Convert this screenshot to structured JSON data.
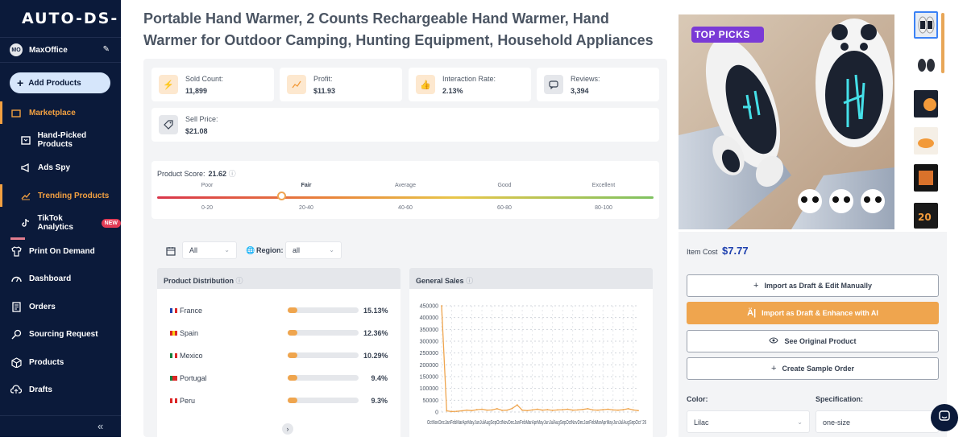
{
  "app": {
    "logo": "AUTO-DS-"
  },
  "user": {
    "initials": "MO",
    "name": "MaxOffice"
  },
  "sidebar": {
    "add_label": "Add Products",
    "items": [
      {
        "label": "Marketplace"
      },
      {
        "label": "Hand-Picked Products"
      },
      {
        "label": "Ads Spy"
      },
      {
        "label": "Trending Products"
      },
      {
        "label": "TikTok Analytics",
        "badge": "NEW"
      },
      {
        "label": "Print On Demand"
      },
      {
        "label": "Dashboard"
      },
      {
        "label": "Orders"
      },
      {
        "label": "Sourcing Request"
      },
      {
        "label": "Products"
      },
      {
        "label": "Drafts"
      }
    ],
    "collapse": "«"
  },
  "product": {
    "title": "Portable Hand Warmer, 2 Counts Rechargeable Hand Warmer, Hand Warmer for Outdoor Camping, Hunting Equipment, Household Appliances",
    "image_badge": "TOP PICKS"
  },
  "stats": [
    {
      "label": "Sold Count:",
      "value": "11,899"
    },
    {
      "label": "Profit:",
      "value": "$11.93"
    },
    {
      "label": "Interaction Rate:",
      "value": "2.13%"
    },
    {
      "label": "Reviews:",
      "value": "3,394"
    },
    {
      "label": "Sell Price:",
      "value": "$21.08"
    }
  ],
  "score": {
    "label": "Product Score:",
    "value": "21.62",
    "level_fraction": 0.25,
    "levels": [
      {
        "name": "Poor",
        "range": "0-20"
      },
      {
        "name": "Fair",
        "range": "20-40"
      },
      {
        "name": "Average",
        "range": "40-60"
      },
      {
        "name": "Good",
        "range": "60-80"
      },
      {
        "name": "Excellent",
        "range": "80-100"
      }
    ]
  },
  "filters": {
    "period": "All",
    "region_label": "Region:",
    "region": "all"
  },
  "distribution": {
    "title": "Product Distribution",
    "rows": [
      {
        "country": "France",
        "pct": "15.13%",
        "value": 15.13,
        "flag": [
          "#1e40af",
          "#ffffff",
          "#dc2626"
        ]
      },
      {
        "country": "Spain",
        "pct": "12.36%",
        "value": 12.36,
        "flag": [
          "#dc2626",
          "#facc15",
          "#dc2626"
        ]
      },
      {
        "country": "Mexico",
        "pct": "10.29%",
        "value": 10.29,
        "flag": [
          "#15803d",
          "#ffffff",
          "#dc2626"
        ]
      },
      {
        "country": "Portugal",
        "pct": "9.4%",
        "value": 9.4,
        "flag": [
          "#15803d",
          "#dc2626",
          "#dc2626"
        ]
      },
      {
        "country": "Peru",
        "pct": "9.3%",
        "value": 9.3,
        "flag": [
          "#dc2626",
          "#ffffff",
          "#dc2626"
        ]
      }
    ]
  },
  "chart_data": {
    "type": "line",
    "title": "General Sales",
    "x": [
      "Oct",
      "Nov",
      "Dec",
      "Jan",
      "Feb",
      "Mar",
      "Apr",
      "May",
      "Jun",
      "Jul",
      "Aug",
      "Sep",
      "Oct",
      "Nov",
      "Dec",
      "Jan",
      "Feb",
      "Mar",
      "Apr",
      "May",
      "Jun",
      "Jul",
      "Aug",
      "Sep",
      "Oct",
      "Nov",
      "Dec",
      "Jan",
      "Feb",
      "Mar",
      "Apr",
      "May",
      "Jun",
      "Jul",
      "Aug",
      "Sep",
      "Oct",
      "Nov",
      "Dec",
      "Jan"
    ],
    "x_axis_text": "OctNovDecJanFebMarAprMayJunJulAugSepOctNovDecJanFebMarAprMayJunJulAugSepOctNovDecJanFebMarAprMayJunJulAugSepOct '26",
    "values": [
      450000,
      5000,
      2000,
      3000,
      5000,
      8000,
      6000,
      10000,
      12000,
      8000,
      9000,
      14000,
      7000,
      8000,
      15000,
      30000,
      8000,
      6000,
      9000,
      12000,
      8000,
      10000,
      7000,
      9000,
      10000,
      12000,
      8000,
      9000,
      11000,
      14000,
      9000,
      8000,
      10000,
      12000,
      9000,
      8000,
      10000,
      14000,
      9000,
      6000
    ],
    "yticks": [
      0,
      50000,
      100000,
      150000,
      200000,
      250000,
      300000,
      350000,
      400000,
      450000
    ],
    "ylim": [
      0,
      450000
    ],
    "grid": true,
    "color": "#efa54e"
  },
  "purchase": {
    "item_cost_label": "Item Cost",
    "item_cost": "$7.77",
    "buttons": [
      {
        "label": "Import as Draft & Edit Manually",
        "icon": "+"
      },
      {
        "label": "Import as Draft & Enhance with AI",
        "icon": "AI"
      },
      {
        "label": "See Original Product",
        "icon": "eye"
      },
      {
        "label": "Create Sample Order",
        "icon": "+"
      }
    ],
    "color_label": "Color:",
    "color_value": "Lilac",
    "spec_label": "Specification:",
    "spec_value": "one-size"
  },
  "colors": {
    "accent": "#efa54e",
    "sidebar": "#0b1a3a",
    "brand_blue": "#1e40af"
  }
}
